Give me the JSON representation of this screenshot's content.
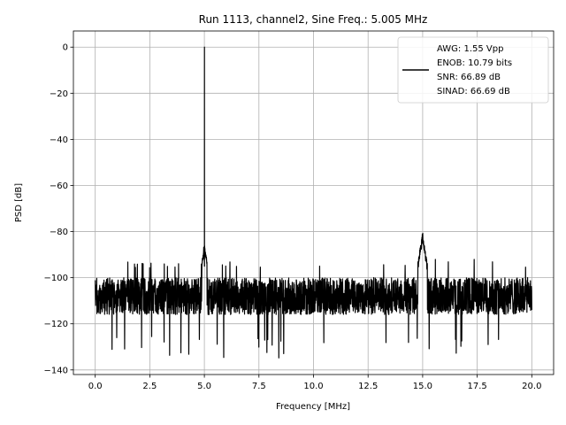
{
  "chart_data": {
    "type": "line",
    "title": "Run 1113, channel2, Sine Freq.: 5.005 MHz",
    "xlabel": "Frequency [MHz]",
    "ylabel": "PSD [dB]",
    "xlim": [
      -1.0,
      21.0
    ],
    "ylim": [
      -142,
      7
    ],
    "xticks": [
      0.0,
      2.5,
      5.0,
      7.5,
      10.0,
      12.5,
      15.0,
      17.5,
      20.0
    ],
    "xtick_labels": [
      "0.0",
      "2.5",
      "5.0",
      "7.5",
      "10.0",
      "12.5",
      "15.0",
      "17.5",
      "20.0"
    ],
    "yticks": [
      -140,
      -120,
      -100,
      -80,
      -60,
      -40,
      -20,
      0
    ],
    "ytick_labels": [
      "−140",
      "−120",
      "−100",
      "−80",
      "−60",
      "−40",
      "−20",
      "0"
    ],
    "grid": true,
    "legend_position": "top-right",
    "line_color": "#000000",
    "series": [
      {
        "legend_lines": [
          "AWG: 1.55 Vpp",
          "ENOB: 10.79 bits",
          "SNR: 66.89 dB",
          "SINAD: 66.69 dB"
        ],
        "noise_floor_db": -108,
        "noise_spread_db": 8,
        "noise_min_db": -135,
        "noise_max_db": -92,
        "peaks": [
          {
            "freq": 5.005,
            "db": 0
          },
          {
            "freq": 5.0,
            "db": -87
          },
          {
            "freq": 15.0,
            "db": -82
          },
          {
            "freq": 14.9,
            "db": -88
          },
          {
            "freq": 15.1,
            "db": -89
          }
        ]
      }
    ]
  }
}
